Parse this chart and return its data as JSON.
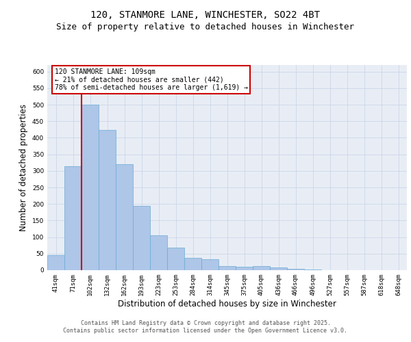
{
  "title_line1": "120, STANMORE LANE, WINCHESTER, SO22 4BT",
  "title_line2": "Size of property relative to detached houses in Winchester",
  "xlabel": "Distribution of detached houses by size in Winchester",
  "ylabel": "Number of detached properties",
  "categories": [
    "41sqm",
    "71sqm",
    "102sqm",
    "132sqm",
    "162sqm",
    "193sqm",
    "223sqm",
    "253sqm",
    "284sqm",
    "314sqm",
    "345sqm",
    "375sqm",
    "405sqm",
    "436sqm",
    "466sqm",
    "496sqm",
    "527sqm",
    "557sqm",
    "587sqm",
    "618sqm",
    "648sqm"
  ],
  "values": [
    46,
    315,
    500,
    423,
    320,
    195,
    105,
    69,
    38,
    33,
    13,
    11,
    12,
    8,
    5,
    2,
    1,
    0,
    0,
    0,
    1
  ],
  "bar_color": "#aec6e8",
  "bar_edge_color": "#6aaad4",
  "vline_color": "#cc0000",
  "annotation_text": "120 STANMORE LANE: 109sqm\n← 21% of detached houses are smaller (442)\n78% of semi-detached houses are larger (1,619) →",
  "annotation_box_color": "#ffffff",
  "annotation_box_edge_color": "#cc0000",
  "ylim": [
    0,
    620
  ],
  "yticks": [
    0,
    50,
    100,
    150,
    200,
    250,
    300,
    350,
    400,
    450,
    500,
    550,
    600
  ],
  "grid_color": "#ccd6e8",
  "background_color": "#e8edf5",
  "footer_text": "Contains HM Land Registry data © Crown copyright and database right 2025.\nContains public sector information licensed under the Open Government Licence v3.0.",
  "title_fontsize": 10,
  "subtitle_fontsize": 9,
  "tick_fontsize": 6.5,
  "label_fontsize": 8.5,
  "annotation_fontsize": 7,
  "footer_fontsize": 6
}
